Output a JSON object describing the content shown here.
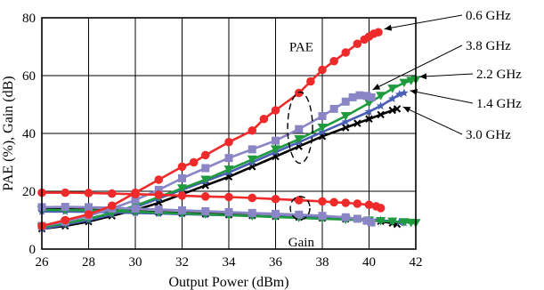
{
  "chart_data": {
    "type": "line",
    "xlabel": "Output Power (dBm)",
    "ylabel": "PAE (%), Gain (dB)",
    "xlim": [
      26,
      42
    ],
    "ylim": [
      0,
      80
    ],
    "xticks": [
      "26",
      "28",
      "30",
      "32",
      "34",
      "36",
      "38",
      "40",
      "42"
    ],
    "yticks": [
      "0",
      "20",
      "40",
      "60",
      "80"
    ],
    "grid": true,
    "annotations": {
      "pae": "PAE",
      "gain": "Gain"
    },
    "series": [
      {
        "name": "0.6 GHz",
        "color": "#ee2a2a",
        "marker": "circle",
        "pae": [
          [
            26,
            8
          ],
          [
            27,
            10
          ],
          [
            28,
            12
          ],
          [
            29,
            15
          ],
          [
            30,
            19.5
          ],
          [
            31,
            24
          ],
          [
            32,
            28.5
          ],
          [
            32.5,
            30
          ],
          [
            33,
            32.5
          ],
          [
            34,
            37
          ],
          [
            35,
            41
          ],
          [
            35.5,
            45
          ],
          [
            36,
            48
          ],
          [
            37,
            54
          ],
          [
            37.5,
            58
          ],
          [
            38,
            62
          ],
          [
            38.5,
            65
          ],
          [
            39,
            68
          ],
          [
            39.5,
            71
          ],
          [
            39.8,
            72.5
          ],
          [
            40,
            73.5
          ],
          [
            40.2,
            74.5
          ],
          [
            40.4,
            75
          ]
        ],
        "gain": [
          [
            26,
            19.5
          ],
          [
            27,
            19.5
          ],
          [
            28,
            19.4
          ],
          [
            29,
            19.2
          ],
          [
            30,
            19
          ],
          [
            31,
            18.8
          ],
          [
            32,
            18.5
          ],
          [
            33,
            18.2
          ],
          [
            34,
            18
          ],
          [
            35,
            17.7
          ],
          [
            36,
            17.3
          ],
          [
            37,
            16.9
          ],
          [
            38,
            16.5
          ],
          [
            38.5,
            16.2
          ],
          [
            39,
            16
          ],
          [
            39.5,
            15.7
          ],
          [
            40,
            15.3
          ],
          [
            40.3,
            14.8
          ],
          [
            40.5,
            14.2
          ]
        ]
      },
      {
        "name": "3.8 GHz",
        "color": "#8a86c6",
        "marker": "square",
        "pae": [
          [
            26,
            8
          ],
          [
            27,
            9.5
          ],
          [
            28,
            11.5
          ],
          [
            29,
            14
          ],
          [
            30,
            17
          ],
          [
            31,
            20.5
          ],
          [
            32,
            24.5
          ],
          [
            33,
            28
          ],
          [
            34,
            31.5
          ],
          [
            35,
            34.5
          ],
          [
            36,
            37.5
          ],
          [
            37,
            41.5
          ],
          [
            38,
            46
          ],
          [
            38.5,
            48.5
          ],
          [
            39,
            51
          ],
          [
            39.3,
            52.5
          ],
          [
            39.6,
            53.2
          ],
          [
            39.9,
            53
          ],
          [
            40.1,
            52.5
          ]
        ],
        "gain": [
          [
            26,
            14.5
          ],
          [
            27,
            14.6
          ],
          [
            28,
            14.5
          ],
          [
            29,
            14.3
          ],
          [
            30,
            14
          ],
          [
            31,
            13.7
          ],
          [
            32,
            13.4
          ],
          [
            33,
            13.1
          ],
          [
            34,
            12.8
          ],
          [
            35,
            12.5
          ],
          [
            36,
            12.2
          ],
          [
            37,
            11.9
          ],
          [
            38,
            11.5
          ],
          [
            39,
            11
          ],
          [
            39.5,
            10.5
          ],
          [
            39.9,
            9.8
          ],
          [
            40.1,
            9.2
          ]
        ]
      },
      {
        "name": "2.2 GHz",
        "color": "#1f9a3f",
        "marker": "triangle-down",
        "pae": [
          [
            26,
            7.5
          ],
          [
            27,
            9
          ],
          [
            28,
            10.5
          ],
          [
            29,
            12.5
          ],
          [
            30,
            15
          ],
          [
            31,
            18
          ],
          [
            32,
            21
          ],
          [
            33,
            24
          ],
          [
            34,
            27.5
          ],
          [
            35,
            31
          ],
          [
            36,
            34.5
          ],
          [
            37,
            38
          ],
          [
            38,
            42
          ],
          [
            39,
            46
          ],
          [
            40,
            50.5
          ],
          [
            40.5,
            53
          ],
          [
            41,
            55.5
          ],
          [
            41.5,
            57.5
          ],
          [
            41.8,
            58.2
          ],
          [
            42,
            58.5
          ]
        ],
        "gain": [
          [
            26,
            13.5
          ],
          [
            27,
            13.5
          ],
          [
            28,
            13.4
          ],
          [
            29,
            13.2
          ],
          [
            30,
            12.9
          ],
          [
            31,
            12.6
          ],
          [
            32,
            12.3
          ],
          [
            33,
            12
          ],
          [
            34,
            11.7
          ],
          [
            35,
            11.4
          ],
          [
            36,
            11.1
          ],
          [
            37,
            10.8
          ],
          [
            38,
            10.5
          ],
          [
            39,
            10.2
          ],
          [
            40,
            9.9
          ],
          [
            40.5,
            9.7
          ],
          [
            41,
            9.5
          ],
          [
            41.5,
            9.3
          ],
          [
            41.8,
            9.1
          ],
          [
            42,
            9
          ]
        ]
      },
      {
        "name": "1.4 GHz",
        "color": "#4a5fb6",
        "marker": "star",
        "pae": [
          [
            26,
            7
          ],
          [
            27,
            8.5
          ],
          [
            28,
            10
          ],
          [
            29,
            12
          ],
          [
            30,
            14.5
          ],
          [
            31,
            17.5
          ],
          [
            32,
            20.5
          ],
          [
            33,
            23.5
          ],
          [
            34,
            26.5
          ],
          [
            35,
            30
          ],
          [
            36,
            33.5
          ],
          [
            37,
            37
          ],
          [
            38,
            40.5
          ],
          [
            39,
            44
          ],
          [
            40,
            47.5
          ],
          [
            40.5,
            49.5
          ],
          [
            41,
            52
          ],
          [
            41.3,
            53.5
          ],
          [
            41.5,
            54
          ]
        ],
        "gain": [
          [
            26,
            13
          ],
          [
            27,
            13
          ],
          [
            28,
            12.9
          ],
          [
            29,
            12.7
          ],
          [
            30,
            12.5
          ],
          [
            31,
            12.3
          ],
          [
            32,
            12.1
          ],
          [
            33,
            11.9
          ],
          [
            34,
            11.7
          ],
          [
            35,
            11.5
          ],
          [
            36,
            11.3
          ],
          [
            37,
            11.1
          ],
          [
            38,
            10.9
          ],
          [
            39,
            10.6
          ],
          [
            40,
            10.3
          ],
          [
            40.5,
            10
          ],
          [
            41,
            9.6
          ],
          [
            41.3,
            9.3
          ],
          [
            41.5,
            9.1
          ]
        ]
      },
      {
        "name": "3.0 GHz",
        "color": "#000000",
        "marker": "x",
        "pae": [
          [
            26,
            7
          ],
          [
            27,
            8
          ],
          [
            28,
            9.5
          ],
          [
            29,
            11.5
          ],
          [
            30,
            13.5
          ],
          [
            31,
            16
          ],
          [
            32,
            19
          ],
          [
            33,
            22
          ],
          [
            34,
            25
          ],
          [
            35,
            28.5
          ],
          [
            36,
            32
          ],
          [
            37,
            35.5
          ],
          [
            38,
            39
          ],
          [
            39,
            42
          ],
          [
            39.5,
            43.5
          ],
          [
            40,
            45
          ],
          [
            40.5,
            46.5
          ],
          [
            41,
            48
          ],
          [
            41.2,
            48.5
          ]
        ],
        "gain": [
          [
            26,
            14
          ],
          [
            27,
            13.8
          ],
          [
            28,
            13.6
          ],
          [
            29,
            13.4
          ],
          [
            30,
            13.1
          ],
          [
            31,
            12.8
          ],
          [
            32,
            12.5
          ],
          [
            33,
            12.2
          ],
          [
            34,
            11.9
          ],
          [
            35,
            11.6
          ],
          [
            36,
            11.3
          ],
          [
            37,
            11
          ],
          [
            38,
            10.7
          ],
          [
            39,
            10.4
          ],
          [
            40,
            10
          ],
          [
            40.5,
            9.6
          ],
          [
            41,
            9
          ],
          [
            41.2,
            8.6
          ]
        ]
      }
    ],
    "legend_order": [
      "0.6 GHz",
      "3.8 GHz",
      "2.2 GHz",
      "1.4 GHz",
      "3.0 GHz"
    ]
  }
}
